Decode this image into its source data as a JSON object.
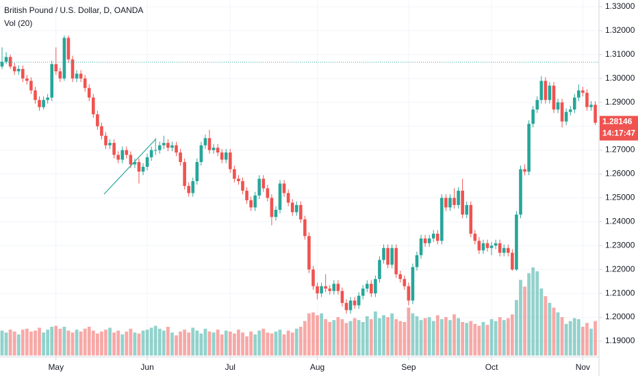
{
  "chart_data": {
    "type": "candlestick",
    "title": "British Pound / U.S. Dollar, D, OANDA",
    "volume_title": "Vol (20)",
    "up_color": "#26a69a",
    "down_color": "#ef5350",
    "ylim": [
      1.19,
      1.33
    ],
    "yticks": [
      {
        "value": 1.33,
        "label": "1.33000"
      },
      {
        "value": 1.32,
        "label": "1.32000"
      },
      {
        "value": 1.31,
        "label": "1.31000"
      },
      {
        "value": 1.3,
        "label": "1.30000"
      },
      {
        "value": 1.29,
        "label": "1.29000"
      },
      {
        "value": 1.28,
        "label": "1.28000"
      },
      {
        "value": 1.27,
        "label": "1.27000"
      },
      {
        "value": 1.26,
        "label": "1.26000"
      },
      {
        "value": 1.25,
        "label": "1.25000"
      },
      {
        "value": 1.24,
        "label": "1.24000"
      },
      {
        "value": 1.23,
        "label": "1.23000"
      },
      {
        "value": 1.22,
        "label": "1.22000"
      },
      {
        "value": 1.21,
        "label": "1.21000"
      },
      {
        "value": 1.2,
        "label": "1.20000"
      },
      {
        "value": 1.19,
        "label": "1.19000"
      }
    ],
    "xticks": [
      {
        "value": 13,
        "label": "May"
      },
      {
        "value": 35,
        "label": "Jun"
      },
      {
        "value": 55,
        "label": "Jul"
      },
      {
        "value": 76,
        "label": "Aug"
      },
      {
        "value": 98,
        "label": "Sep"
      },
      {
        "value": 118,
        "label": "Oct"
      },
      {
        "value": 140,
        "label": "Nov"
      }
    ],
    "grid": true,
    "price_line": 1.3068,
    "last_price": {
      "value": 1.28146,
      "label": "1.28146"
    },
    "countdown": "14:17:47",
    "vol_lim": [
      0,
      100
    ],
    "ohlc": [
      [
        1.305,
        1.313,
        1.304,
        1.307
      ],
      [
        1.307,
        1.311,
        1.306,
        1.309
      ],
      [
        1.309,
        1.31,
        1.304,
        1.305
      ],
      [
        1.305,
        1.3065,
        1.3015,
        1.303
      ],
      [
        1.303,
        1.3055,
        1.3015,
        1.304
      ],
      [
        1.304,
        1.3055,
        1.2985,
        1.3
      ],
      [
        1.3,
        1.3015,
        1.2975,
        1.299
      ],
      [
        1.299,
        1.3005,
        1.2935,
        1.295
      ],
      [
        1.295,
        1.2965,
        1.2895,
        1.291
      ],
      [
        1.291,
        1.2925,
        1.2865,
        1.288
      ],
      [
        1.288,
        1.2925,
        1.287,
        1.291
      ],
      [
        1.291,
        1.2935,
        1.2895,
        1.292
      ],
      [
        1.292,
        1.3075,
        1.2905,
        1.306
      ],
      [
        1.306,
        1.313,
        1.3015,
        1.303
      ],
      [
        1.303,
        1.3045,
        1.2985,
        1.3
      ],
      [
        1.3,
        1.318,
        1.299,
        1.317
      ],
      [
        1.317,
        1.318,
        1.3065,
        1.308
      ],
      [
        1.308,
        1.3095,
        1.2985,
        1.3
      ],
      [
        1.3,
        1.3035,
        1.2985,
        1.302
      ],
      [
        1.302,
        1.3035,
        1.2985,
        1.3
      ],
      [
        1.3,
        1.3015,
        1.2945,
        1.296
      ],
      [
        1.296,
        1.2975,
        1.2905,
        1.292
      ],
      [
        1.292,
        1.2935,
        1.2835,
        1.285
      ],
      [
        1.285,
        1.2865,
        1.2785,
        1.28
      ],
      [
        1.28,
        1.2815,
        1.2745,
        1.276
      ],
      [
        1.276,
        1.2775,
        1.2705,
        1.272
      ],
      [
        1.272,
        1.2745,
        1.2705,
        1.273
      ],
      [
        1.273,
        1.2745,
        1.2665,
        1.268
      ],
      [
        1.268,
        1.2695,
        1.2645,
        1.266
      ],
      [
        1.266,
        1.2715,
        1.2645,
        1.27
      ],
      [
        1.27,
        1.2715,
        1.2665,
        1.268
      ],
      [
        1.268,
        1.2695,
        1.2625,
        1.264
      ],
      [
        1.264,
        1.2665,
        1.2625,
        1.265
      ],
      [
        1.265,
        1.2665,
        1.256,
        1.261
      ],
      [
        1.261,
        1.2645,
        1.2595,
        1.263
      ],
      [
        1.263,
        1.2685,
        1.2615,
        1.267
      ],
      [
        1.267,
        1.2715,
        1.2655,
        1.27
      ],
      [
        1.27,
        1.275,
        1.268,
        1.27
      ],
      [
        1.27,
        1.2735,
        1.2685,
        1.272
      ],
      [
        1.272,
        1.276,
        1.2705,
        1.273
      ],
      [
        1.273,
        1.2745,
        1.2695,
        1.271
      ],
      [
        1.271,
        1.2735,
        1.2695,
        1.272
      ],
      [
        1.272,
        1.2735,
        1.2675,
        1.269
      ],
      [
        1.269,
        1.2705,
        1.2635,
        1.265
      ],
      [
        1.265,
        1.2665,
        1.2535,
        1.255
      ],
      [
        1.255,
        1.2565,
        1.2505,
        1.252
      ],
      [
        1.252,
        1.2585,
        1.2505,
        1.257
      ],
      [
        1.257,
        1.2665,
        1.2555,
        1.265
      ],
      [
        1.265,
        1.2735,
        1.2635,
        1.272
      ],
      [
        1.272,
        1.2765,
        1.2705,
        1.275
      ],
      [
        1.275,
        1.2785,
        1.2685,
        1.27
      ],
      [
        1.27,
        1.2725,
        1.2685,
        1.271
      ],
      [
        1.271,
        1.2725,
        1.2675,
        1.269
      ],
      [
        1.269,
        1.2705,
        1.2645,
        1.266
      ],
      [
        1.266,
        1.2705,
        1.2645,
        1.269
      ],
      [
        1.269,
        1.2705,
        1.2605,
        1.262
      ],
      [
        1.262,
        1.2635,
        1.2565,
        1.258
      ],
      [
        1.258,
        1.2595,
        1.2555,
        1.257
      ],
      [
        1.257,
        1.2585,
        1.2515,
        1.253
      ],
      [
        1.253,
        1.2545,
        1.2475,
        1.249
      ],
      [
        1.249,
        1.2505,
        1.2445,
        1.246
      ],
      [
        1.246,
        1.2525,
        1.2445,
        1.251
      ],
      [
        1.251,
        1.2595,
        1.2495,
        1.258
      ],
      [
        1.258,
        1.2595,
        1.2525,
        1.254
      ],
      [
        1.254,
        1.2555,
        1.2485,
        1.25
      ],
      [
        1.25,
        1.2515,
        1.2385,
        1.242
      ],
      [
        1.242,
        1.2465,
        1.2405,
        1.245
      ],
      [
        1.245,
        1.2575,
        1.2435,
        1.256
      ],
      [
        1.256,
        1.2575,
        1.2505,
        1.252
      ],
      [
        1.252,
        1.2535,
        1.2465,
        1.248
      ],
      [
        1.248,
        1.2495,
        1.2425,
        1.244
      ],
      [
        1.244,
        1.2485,
        1.2425,
        1.247
      ],
      [
        1.247,
        1.2485,
        1.2395,
        1.241
      ],
      [
        1.241,
        1.2425,
        1.2325,
        1.234
      ],
      [
        1.234,
        1.2355,
        1.2185,
        1.22
      ],
      [
        1.22,
        1.2215,
        1.2115,
        1.213
      ],
      [
        1.213,
        1.2145,
        1.2075,
        1.21
      ],
      [
        1.21,
        1.2145,
        1.2085,
        1.213
      ],
      [
        1.213,
        1.218,
        1.2105,
        1.212
      ],
      [
        1.212,
        1.2135,
        1.2095,
        1.211
      ],
      [
        1.211,
        1.2155,
        1.2095,
        1.214
      ],
      [
        1.214,
        1.2155,
        1.2095,
        1.211
      ],
      [
        1.211,
        1.2125,
        1.2045,
        1.206
      ],
      [
        1.206,
        1.2075,
        1.2015,
        1.203
      ],
      [
        1.203,
        1.2085,
        1.2015,
        1.207
      ],
      [
        1.207,
        1.2085,
        1.2035,
        1.205
      ],
      [
        1.205,
        1.2105,
        1.2035,
        1.209
      ],
      [
        1.209,
        1.2135,
        1.2075,
        1.212
      ],
      [
        1.212,
        1.2155,
        1.2105,
        1.214
      ],
      [
        1.214,
        1.2155,
        1.2085,
        1.21
      ],
      [
        1.21,
        1.2175,
        1.2085,
        1.216
      ],
      [
        1.216,
        1.2255,
        1.2145,
        1.224
      ],
      [
        1.224,
        1.2305,
        1.2225,
        1.229
      ],
      [
        1.229,
        1.2305,
        1.2205,
        1.222
      ],
      [
        1.222,
        1.2305,
        1.2205,
        1.229
      ],
      [
        1.229,
        1.2305,
        1.2165,
        1.218
      ],
      [
        1.218,
        1.2195,
        1.2145,
        1.216
      ],
      [
        1.216,
        1.2175,
        1.2115,
        1.213
      ],
      [
        1.213,
        1.2145,
        1.205,
        1.207
      ],
      [
        1.207,
        1.2225,
        1.2055,
        1.221
      ],
      [
        1.221,
        1.2275,
        1.2195,
        1.226
      ],
      [
        1.226,
        1.2345,
        1.2245,
        1.233
      ],
      [
        1.233,
        1.2345,
        1.2295,
        1.231
      ],
      [
        1.231,
        1.2345,
        1.2295,
        1.233
      ],
      [
        1.233,
        1.2365,
        1.2315,
        1.235
      ],
      [
        1.235,
        1.2365,
        1.2305,
        1.232
      ],
      [
        1.232,
        1.2515,
        1.2305,
        1.25
      ],
      [
        1.25,
        1.2515,
        1.2445,
        1.246
      ],
      [
        1.246,
        1.2515,
        1.2445,
        1.25
      ],
      [
        1.25,
        1.254,
        1.2455,
        1.247
      ],
      [
        1.247,
        1.2545,
        1.2455,
        1.253
      ],
      [
        1.253,
        1.258,
        1.2415,
        1.243
      ],
      [
        1.243,
        1.2485,
        1.2415,
        1.247
      ],
      [
        1.247,
        1.2485,
        1.2335,
        1.235
      ],
      [
        1.235,
        1.2365,
        1.2305,
        1.232
      ],
      [
        1.232,
        1.2335,
        1.2265,
        1.228
      ],
      [
        1.228,
        1.2325,
        1.2265,
        1.231
      ],
      [
        1.231,
        1.2325,
        1.2275,
        1.229
      ],
      [
        1.229,
        1.2315,
        1.226,
        1.23
      ],
      [
        1.23,
        1.2325,
        1.2285,
        1.231
      ],
      [
        1.231,
        1.2325,
        1.2255,
        1.227
      ],
      [
        1.227,
        1.2305,
        1.2255,
        1.229
      ],
      [
        1.229,
        1.2305,
        1.2255,
        1.227
      ],
      [
        1.227,
        1.2285,
        1.2195,
        1.22
      ],
      [
        1.22,
        1.2445,
        1.2195,
        1.243
      ],
      [
        1.243,
        1.2635,
        1.2415,
        1.262
      ],
      [
        1.262,
        1.264,
        1.2595,
        1.261
      ],
      [
        1.261,
        1.2825,
        1.2595,
        1.281
      ],
      [
        1.281,
        1.2885,
        1.2795,
        1.287
      ],
      [
        1.287,
        1.2925,
        1.2855,
        1.291
      ],
      [
        1.291,
        1.301,
        1.2895,
        1.299
      ],
      [
        1.299,
        1.3005,
        1.2895,
        1.291
      ],
      [
        1.291,
        1.2985,
        1.2895,
        1.297
      ],
      [
        1.297,
        1.2985,
        1.2855,
        1.287
      ],
      [
        1.287,
        1.2915,
        1.2855,
        1.29
      ],
      [
        1.29,
        1.2915,
        1.2795,
        1.282
      ],
      [
        1.282,
        1.2875,
        1.2805,
        1.286
      ],
      [
        1.286,
        1.2885,
        1.2845,
        1.287
      ],
      [
        1.287,
        1.2935,
        1.2855,
        1.292
      ],
      [
        1.292,
        1.2975,
        1.2905,
        1.295
      ],
      [
        1.295,
        1.2965,
        1.2925,
        1.294
      ],
      [
        1.294,
        1.2955,
        1.2865,
        1.288
      ],
      [
        1.288,
        1.2905,
        1.2865,
        1.289
      ],
      [
        1.289,
        1.2905,
        1.2805,
        1.28146
      ]
    ],
    "volume": [
      26,
      24,
      27,
      25,
      22,
      27,
      28,
      25,
      26,
      29,
      24,
      27,
      30,
      31,
      28,
      30,
      26,
      24,
      27,
      25,
      28,
      30,
      26,
      23,
      25,
      27,
      29,
      24,
      26,
      22,
      25,
      28,
      24,
      23,
      26,
      27,
      29,
      31,
      28,
      26,
      30,
      24,
      21,
      25,
      27,
      24,
      29,
      26,
      23,
      28,
      25,
      24,
      27,
      22,
      26,
      25,
      23,
      27,
      24,
      20,
      25,
      22,
      26,
      28,
      24,
      23,
      25,
      27,
      22,
      26,
      24,
      28,
      30,
      36,
      44,
      45,
      42,
      44,
      38,
      35,
      37,
      40,
      38,
      34,
      36,
      39,
      37,
      35,
      41,
      38,
      46,
      39,
      42,
      40,
      44,
      38,
      36,
      35,
      50,
      44,
      41,
      37,
      39,
      40,
      36,
      42,
      38,
      40,
      37,
      43,
      39,
      35,
      34,
      36,
      33,
      31,
      35,
      32,
      38,
      36,
      40,
      37,
      39,
      43,
      58,
      79,
      72,
      86,
      92,
      88,
      70,
      62,
      55,
      50,
      45,
      40,
      33,
      36,
      39,
      38,
      30,
      34,
      28,
      36
    ]
  }
}
